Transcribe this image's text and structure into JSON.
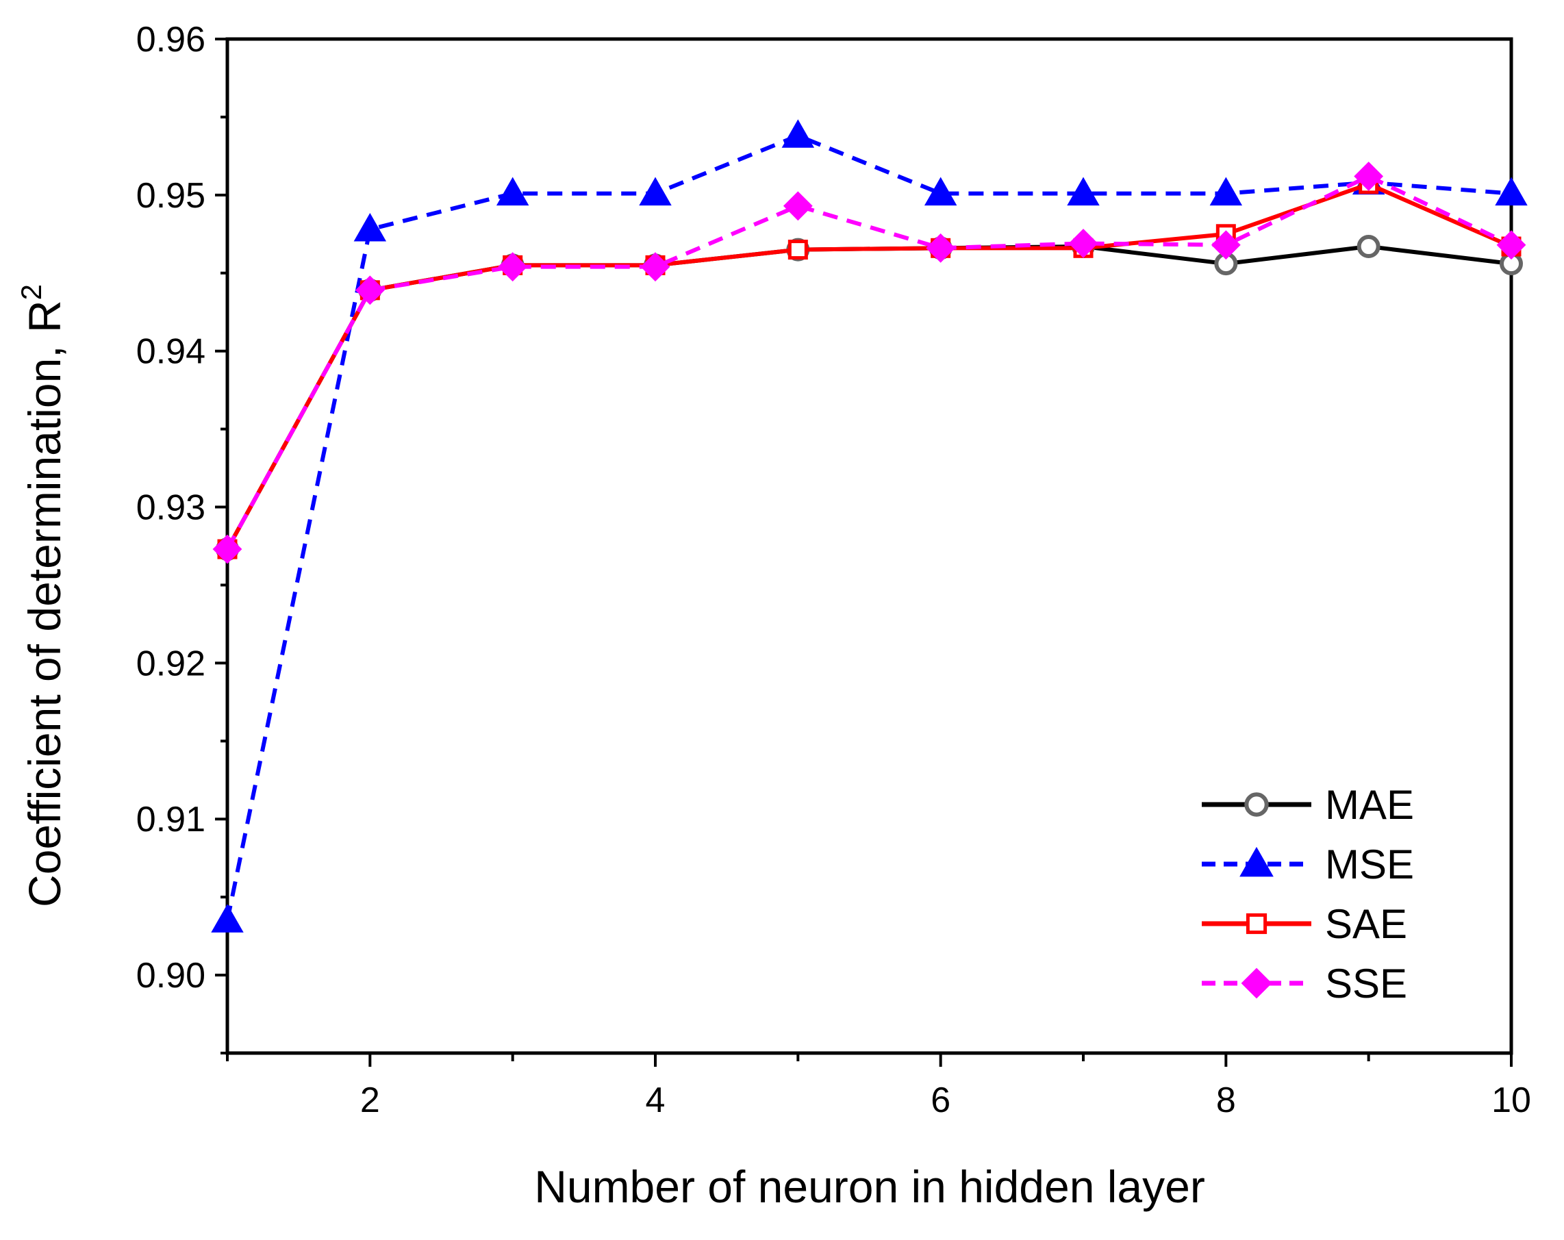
{
  "chart_data": {
    "type": "line",
    "title": "",
    "xlabel": "Number of neuron in hidden layer",
    "ylabel": "Coefficient of determination, R",
    "ylabel_superscript": "2",
    "xlim": [
      1,
      10
    ],
    "ylim": [
      0.895,
      0.96
    ],
    "x_ticks": [
      2,
      4,
      6,
      8,
      10
    ],
    "x_tick_labels": [
      "2",
      "4",
      "6",
      "8",
      "10"
    ],
    "y_ticks": [
      0.9,
      0.91,
      0.92,
      0.93,
      0.94,
      0.95,
      0.96
    ],
    "y_tick_labels": [
      "0.90",
      "0.91",
      "0.92",
      "0.93",
      "0.94",
      "0.95",
      "0.96"
    ],
    "grid": false,
    "legend_position": "bottom-right",
    "x": [
      1,
      2,
      3,
      4,
      5,
      6,
      7,
      8,
      9,
      10
    ],
    "series": [
      {
        "name": "MAE",
        "color": "#000000",
        "marker": "circle-open",
        "marker_color": "#666666",
        "dash": "solid",
        "values": [
          0.9273,
          0.9439,
          0.9455,
          0.9455,
          0.9465,
          0.9466,
          0.9467,
          0.9456,
          0.9467,
          0.9456
        ]
      },
      {
        "name": "MSE",
        "color": "#0000ff",
        "marker": "triangle",
        "marker_color": "#0000ff",
        "dash": "dashed",
        "values": [
          0.9035,
          0.9478,
          0.9501,
          0.9501,
          0.9538,
          0.9501,
          0.9501,
          0.9501,
          0.9508,
          0.9501
        ]
      },
      {
        "name": "SAE",
        "color": "#ff0000",
        "marker": "square-open",
        "marker_color": "#ff0000",
        "dash": "solid",
        "values": [
          0.9273,
          0.9439,
          0.9455,
          0.9455,
          0.9465,
          0.9466,
          0.9466,
          0.9475,
          0.9507,
          0.9467
        ]
      },
      {
        "name": "SSE",
        "color": "#ff00ff",
        "marker": "diamond",
        "marker_color": "#ff00ff",
        "dash": "dashed",
        "values": [
          0.9273,
          0.9439,
          0.9454,
          0.9454,
          0.9493,
          0.9466,
          0.9469,
          0.9468,
          0.9512,
          0.9468
        ]
      }
    ]
  }
}
